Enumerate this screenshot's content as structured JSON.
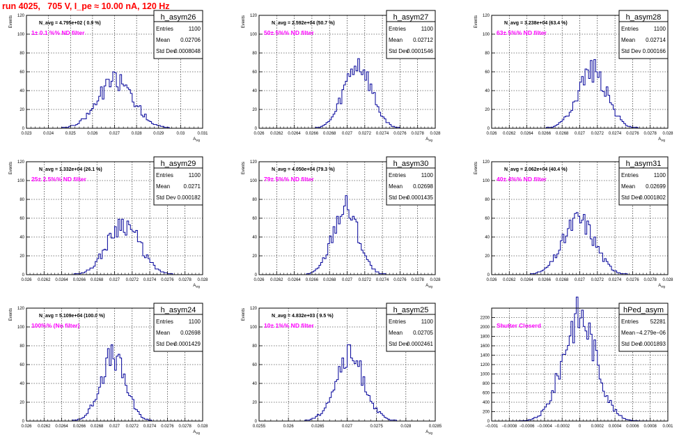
{
  "page": {
    "title": "run 4025,   705 V, I_pe ≈ 10.00 nA, 120 Hz"
  },
  "colors": {
    "histogram": "#000099",
    "annotation": "#ff00ff",
    "title": "#ff0000",
    "axis": "#000000"
  },
  "chart_data": [
    {
      "type": "bar",
      "name": "h_asym26",
      "ylabel": "Events",
      "xlabel": "A_sig",
      "navg": "N_avg = 4.795e+02 ( 0.9 %)",
      "filter": "1± 0.1 %% ND filter",
      "stats": {
        "Entries": "1100",
        "Mean": "0.02706",
        "Std Dev": "0.0008048"
      },
      "xlim": [
        0.023,
        0.031
      ],
      "ylim": [
        0,
        120
      ],
      "xticks": [
        "0.023",
        "0.024",
        "0.025",
        "0.026",
        "0.027",
        "0.028",
        "0.029",
        "0.03",
        "0.031"
      ],
      "yticks": [
        "0",
        "20",
        "40",
        "60",
        "80",
        "100",
        "120"
      ],
      "mean": 0.02706,
      "sd": 0.0008048,
      "peak": 51,
      "seed": 26
    },
    {
      "type": "bar",
      "name": "h_asym27",
      "ylabel": "Events",
      "xlabel": "A_sig",
      "navg": "N_avg = 2.592e+04 (50.7 %)",
      "filter": "50± 5%% ND filter",
      "stats": {
        "Entries": "1100",
        "Mean": "0.02712",
        "Std Dev": "0.0001546"
      },
      "xlim": [
        0.026,
        0.028
      ],
      "ylim": [
        0,
        120
      ],
      "xticks": [
        "0.026",
        "0.0262",
        "0.0264",
        "0.0266",
        "0.0268",
        "0.027",
        "0.0272",
        "0.0274",
        "0.0276",
        "0.0278",
        "0.028"
      ],
      "yticks": [
        "0",
        "20",
        "40",
        "60",
        "80",
        "100",
        "120"
      ],
      "mean": 0.02712,
      "sd": 0.0001546,
      "peak": 66,
      "seed": 27
    },
    {
      "type": "bar",
      "name": "h_asym28",
      "ylabel": "Events",
      "xlabel": "A_sig",
      "navg": "N_avg = 3.238e+04 (63.4 %)",
      "filter": "63± 5%% ND filter",
      "stats": {
        "Entries": "1100",
        "Mean": "0.02714",
        "Std Dev": "0.000166"
      },
      "xlim": [
        0.026,
        0.028
      ],
      "ylim": [
        0,
        120
      ],
      "xticks": [
        "0.026",
        "0.0262",
        "0.0264",
        "0.0266",
        "0.0268",
        "0.027",
        "0.0272",
        "0.0274",
        "0.0276",
        "0.0278",
        "0.028"
      ],
      "yticks": [
        "0",
        "20",
        "40",
        "60",
        "80",
        "100",
        "120"
      ],
      "mean": 0.02714,
      "sd": 0.000166,
      "peak": 62,
      "seed": 28
    },
    {
      "type": "bar",
      "name": "h_asym29",
      "ylabel": "Events",
      "xlabel": "A_sig",
      "navg": "N_avg = 1.332e+04 (26.1 %)",
      "filter": "25± 2.5%% ND filter",
      "stats": {
        "Entries": "1100",
        "Mean": "0.0271",
        "Std Dev": "0.000182"
      },
      "xlim": [
        0.026,
        0.028
      ],
      "ylim": [
        0,
        120
      ],
      "xticks": [
        "0.026",
        "0.0262",
        "0.0264",
        "0.0266",
        "0.0268",
        "0.027",
        "0.0272",
        "0.0274",
        "0.0276",
        "0.0278",
        "0.028"
      ],
      "yticks": [
        "0",
        "20",
        "40",
        "60",
        "80",
        "100",
        "120"
      ],
      "mean": 0.0271,
      "sd": 0.000182,
      "peak": 55,
      "seed": 29
    },
    {
      "type": "bar",
      "name": "h_asym30",
      "ylabel": "Events",
      "xlabel": "A_sig",
      "navg": "N_avg = 4.050e+04 (79.3 %)",
      "filter": "79± 5%% ND filter",
      "stats": {
        "Entries": "1100",
        "Mean": "0.02698",
        "Std Dev": "0.0001435"
      },
      "xlim": [
        0.026,
        0.028
      ],
      "ylim": [
        0,
        120
      ],
      "xticks": [
        "0.026",
        "0.0262",
        "0.0264",
        "0.0266",
        "0.0268",
        "0.027",
        "0.0272",
        "0.0274",
        "0.0276",
        "0.0278",
        "0.028"
      ],
      "yticks": [
        "0",
        "20",
        "40",
        "60",
        "80",
        "100",
        "120"
      ],
      "mean": 0.02698,
      "sd": 0.0001435,
      "peak": 71,
      "seed": 30
    },
    {
      "type": "bar",
      "name": "h_asym31",
      "ylabel": "Events",
      "xlabel": "A_sig",
      "navg": "N_avg = 2.062e+04 (40.4 %)",
      "filter": "40± 4%% ND filter",
      "stats": {
        "Entries": "1100",
        "Mean": "0.02699",
        "Std Dev": "0.0001802"
      },
      "xlim": [
        0.026,
        0.028
      ],
      "ylim": [
        0,
        120
      ],
      "xticks": [
        "0.026",
        "0.0262",
        "0.0264",
        "0.0266",
        "0.0268",
        "0.027",
        "0.0272",
        "0.0274",
        "0.0276",
        "0.0278",
        "0.028"
      ],
      "yticks": [
        "0",
        "20",
        "40",
        "60",
        "80",
        "100",
        "120"
      ],
      "mean": 0.02699,
      "sd": 0.0001802,
      "peak": 58,
      "seed": 31
    },
    {
      "type": "bar",
      "name": "h_asym24",
      "ylabel": "Events",
      "xlabel": "A_sig",
      "navg": "N_avg = 5.109e+04 (100.0 %)",
      "filter": "100%% (No filter)",
      "stats": {
        "Entries": "1100",
        "Mean": "0.02698",
        "Std Dev": "0.0001429"
      },
      "xlim": [
        0.026,
        0.028
      ],
      "ylim": [
        0,
        120
      ],
      "xticks": [
        "0.026",
        "0.0262",
        "0.0264",
        "0.0266",
        "0.0268",
        "0.027",
        "0.0272",
        "0.0274",
        "0.0276",
        "0.0278",
        "0.028"
      ],
      "yticks": [
        "0",
        "20",
        "40",
        "60",
        "80",
        "100",
        "120"
      ],
      "mean": 0.02698,
      "sd": 0.0001429,
      "peak": 68,
      "seed": 24
    },
    {
      "type": "bar",
      "name": "h_asym25",
      "ylabel": "Events",
      "xlabel": "A_sig",
      "navg": "N_avg = 4.832e+03 ( 9.5 %)",
      "filter": "10± 1%% ND filter",
      "stats": {
        "Entries": "1100",
        "Mean": "0.02705",
        "Std Dev": "0.0002461"
      },
      "xlim": [
        0.0255,
        0.0285
      ],
      "ylim": [
        0,
        120
      ],
      "xticks": [
        "0.0255",
        "0.026",
        "0.0265",
        "0.027",
        "0.0275",
        "0.028",
        "0.0285"
      ],
      "yticks": [
        "0",
        "20",
        "40",
        "60",
        "80",
        "100",
        "120"
      ],
      "mean": 0.02705,
      "sd": 0.0002461,
      "peak": 68,
      "seed": 25
    },
    {
      "type": "bar",
      "name": "hPed_asym",
      "ylabel": "",
      "xlabel": "",
      "navg": "",
      "filter": "Shutter Closerd",
      "stats": {
        "Entries": "52281",
        "Mean": "−4.279e−06",
        "Std Dev": "0.0001893"
      },
      "xlim": [
        -0.001,
        0.001
      ],
      "ylim": [
        0,
        2400
      ],
      "xticks": [
        "−0.001",
        "−0.0008",
        "−0.0006",
        "−0.0004",
        "−0.0002",
        "0",
        "0.0002",
        "0.0004",
        "0.0006",
        "0.0008",
        "0.001"
      ],
      "yticks": [
        "0",
        "200",
        "400",
        "600",
        "800",
        "1000",
        "1200",
        "1400",
        "1600",
        "1800",
        "2000",
        "2200"
      ],
      "mean": -4.279e-06,
      "sd": 0.0001893,
      "peak": 2230,
      "seed": 9
    }
  ]
}
